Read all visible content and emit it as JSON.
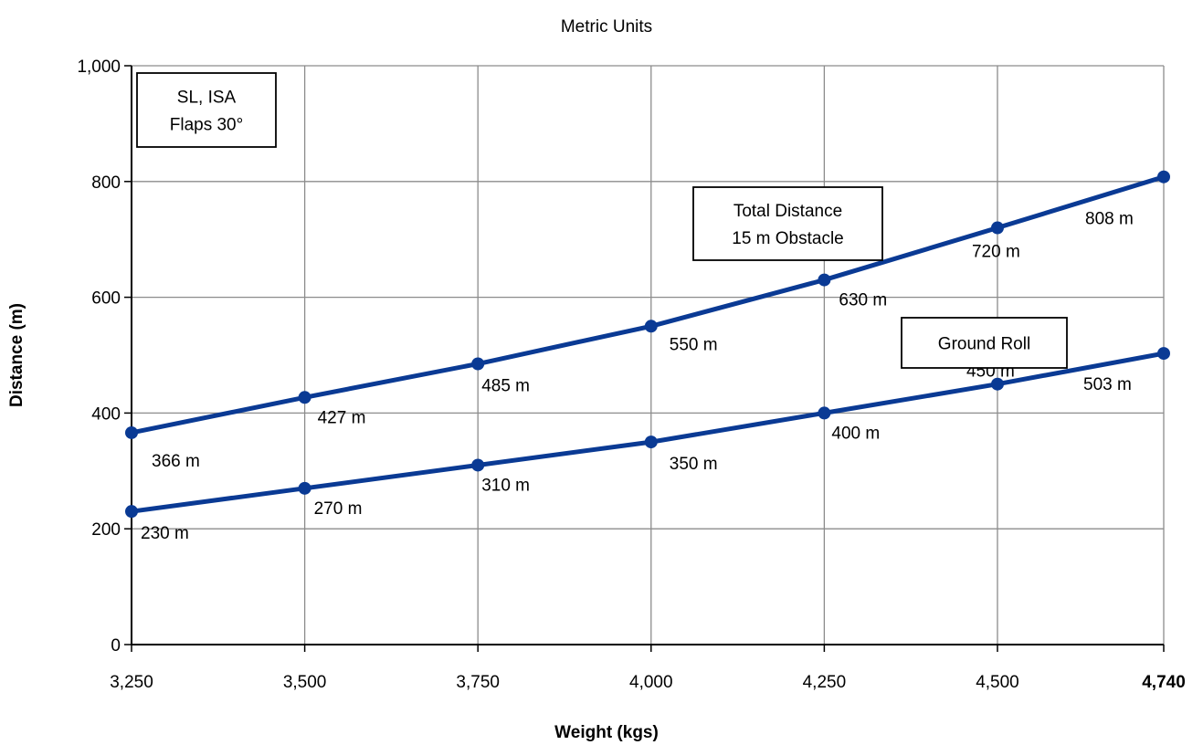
{
  "chart_data": {
    "type": "line",
    "title": "Metric Units",
    "xlabel": "Weight (kgs)",
    "ylabel": "Distance (m)",
    "x": [
      3250,
      3500,
      3750,
      4000,
      4250,
      4500,
      4740
    ],
    "x_tick_labels": [
      "3,250",
      "3,500",
      "3,750",
      "4,000",
      "4,250",
      "4,500",
      "4,740"
    ],
    "y_ticks": [
      0,
      200,
      400,
      600,
      800,
      1000
    ],
    "y_tick_labels": [
      "0",
      "200",
      "400",
      "600",
      "800",
      "1,000"
    ],
    "xlim": [
      3250,
      4740
    ],
    "ylim": [
      0,
      1000
    ],
    "grid": true,
    "series": [
      {
        "name": "Total Distance 15 m Obstacle",
        "color": "#0a3a94",
        "values": [
          366,
          427,
          485,
          550,
          630,
          720,
          808
        ],
        "labels": [
          "366 m",
          "427 m",
          "485 m",
          "550 m",
          "630 m",
          "720 m",
          "808 m"
        ]
      },
      {
        "name": "Ground Roll",
        "color": "#0a3a94",
        "values": [
          230,
          270,
          310,
          350,
          400,
          450,
          503
        ],
        "labels": [
          "230 m",
          "270 m",
          "310 m",
          "350 m",
          "400 m",
          "450 m",
          "503 m"
        ]
      }
    ],
    "annotations": {
      "conditions": [
        "SL, ISA",
        "Flaps 30°"
      ],
      "total_box": [
        "Total Distance",
        "15 m Obstacle"
      ],
      "ground_box": [
        "Ground Roll"
      ]
    }
  }
}
